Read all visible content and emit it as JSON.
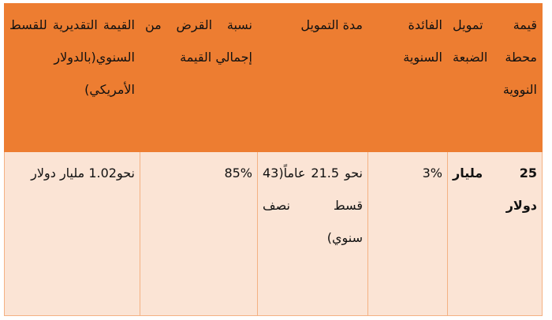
{
  "table": {
    "headers": [
      "قيمة تمويل محطة الضبعة النووية",
      "الفائدة السنوية",
      "مدة التمويل",
      "نسبة القرض من إجمالي القيمة",
      "القيمة التقديرية للقسط السنوي(بالدولار الأمريكي)"
    ],
    "row": [
      "25 مليار دولار",
      "3%",
      "نحو 21.5 عاماً(43 قسط نصف سنوي)",
      "85%",
      "نحو1.02 مليار دولار"
    ]
  },
  "colors": {
    "header_bg": "#ed7d31",
    "body_bg": "#fbe4d5",
    "border": "#f4b183"
  }
}
